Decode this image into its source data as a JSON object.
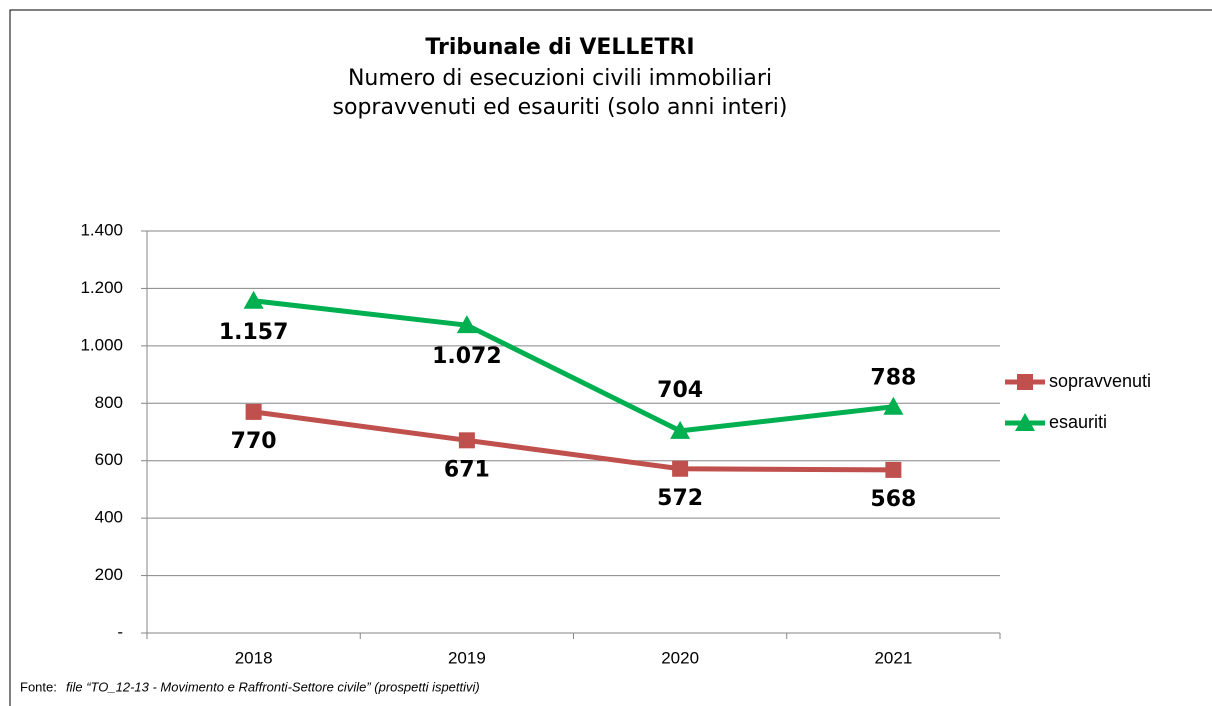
{
  "chart_data": {
    "type": "line",
    "title": "Tribunale di VELLETRI",
    "subtitle": [
      "Numero di esecuzioni civili immobiliari",
      "sopravvenuti ed esauriti (solo anni interi)"
    ],
    "categories": [
      "2018",
      "2019",
      "2020",
      "2021"
    ],
    "series": [
      {
        "name": "sopravvenuti",
        "color": "#c0504d",
        "label_color": "#c00000",
        "marker": "square",
        "values": [
          770,
          671,
          572,
          568
        ]
      },
      {
        "name": "esauriti",
        "color": "#00b050",
        "label_color": "#00b050",
        "marker": "triangle",
        "values": [
          1157,
          1072,
          704,
          788
        ],
        "value_labels": [
          "1.157",
          "1.072",
          "704",
          "788"
        ]
      }
    ],
    "ylim": [
      0,
      1400
    ],
    "yticks": [
      {
        "value": 0,
        "label": "-"
      },
      200,
      400,
      600,
      800,
      {
        "value": 1000,
        "label": "1.000"
      },
      {
        "value": 1200,
        "label": "1.200"
      },
      {
        "value": 1400,
        "label": "1.400"
      }
    ],
    "grid": true,
    "legend": "right",
    "source_label": "Fonte:",
    "source": "file “TO_12-13 - Movimento e Raffronti-Settore civile” (prospetti ispettivi)"
  }
}
